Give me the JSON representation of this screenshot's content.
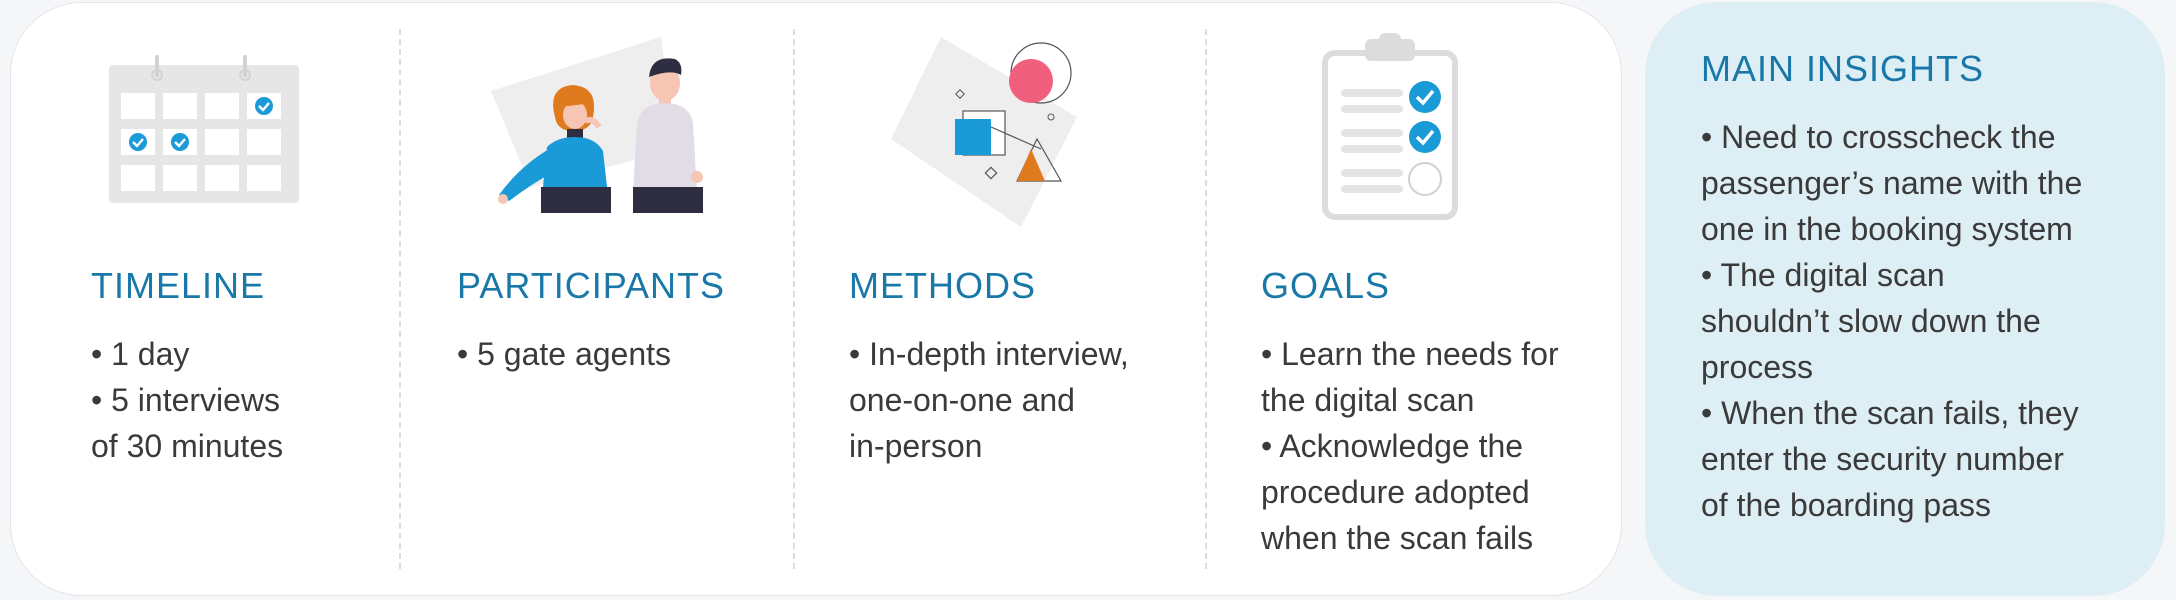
{
  "columns": [
    {
      "heading": "TIMELINE",
      "lines": [
        "• 1 day",
        "• 5 interviews",
        "of 30 minutes"
      ]
    },
    {
      "heading": "PARTICIPANTS",
      "lines": [
        "• 5 gate agents"
      ]
    },
    {
      "heading": "METHODS",
      "lines": [
        "• In-depth interview,",
        "one-on-one and",
        "in-person"
      ]
    },
    {
      "heading": "GOALS",
      "lines": [
        "• Learn the needs for",
        "the digital scan",
        "•  Acknowledge the",
        "procedure adopted",
        "when the scan fails"
      ]
    }
  ],
  "insights": {
    "heading": "MAIN INSIGHTS",
    "lines": [
      "• Need to crosscheck the",
      "passenger’s name with the",
      "one in the booking system",
      "• The digital scan",
      "shouldn’t slow down the",
      "process",
      "• When the scan fails, they",
      "enter the security number",
      "of the boarding pass"
    ]
  },
  "colors": {
    "heading": "#1a78a8",
    "accent_blue": "#1a9bd7",
    "pink": "#f0607e",
    "orange": "#e07a1f",
    "insights_bg": "#deeef5"
  },
  "icons": [
    "calendar-icon",
    "people-illustration",
    "shapes-illustration",
    "checklist-icon"
  ]
}
